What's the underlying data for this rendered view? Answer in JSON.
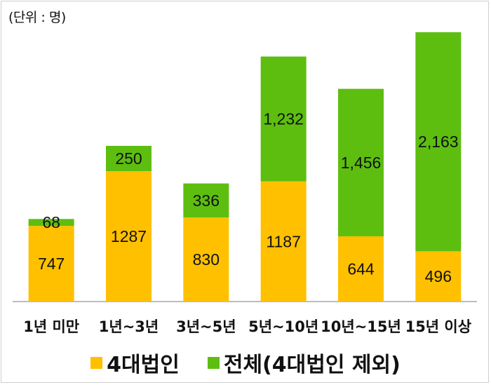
{
  "chart_data": {
    "type": "bar",
    "stacked": true,
    "unit_label": "(단위 : 명)",
    "categories": [
      "1년 미만",
      "1년~3년",
      "3년~5년",
      "5년~10년",
      "10년~15년",
      "15년 이상"
    ],
    "series": [
      {
        "name": "4대법인",
        "color": "#FFC000",
        "values": [
          747,
          1287,
          830,
          1187,
          644,
          496
        ],
        "labels": [
          "747",
          "1287",
          "830",
          "1187",
          "644",
          "496"
        ]
      },
      {
        "name": "전체(4대법인 제외)",
        "color": "#5DBE10",
        "values": [
          68,
          250,
          336,
          1232,
          1456,
          2163
        ],
        "labels": [
          "68",
          "250",
          "336",
          "1,232",
          "1,456",
          "2,163"
        ]
      }
    ],
    "ylim": [
      0,
      2700
    ],
    "grid": false,
    "legend_position": "bottom"
  }
}
